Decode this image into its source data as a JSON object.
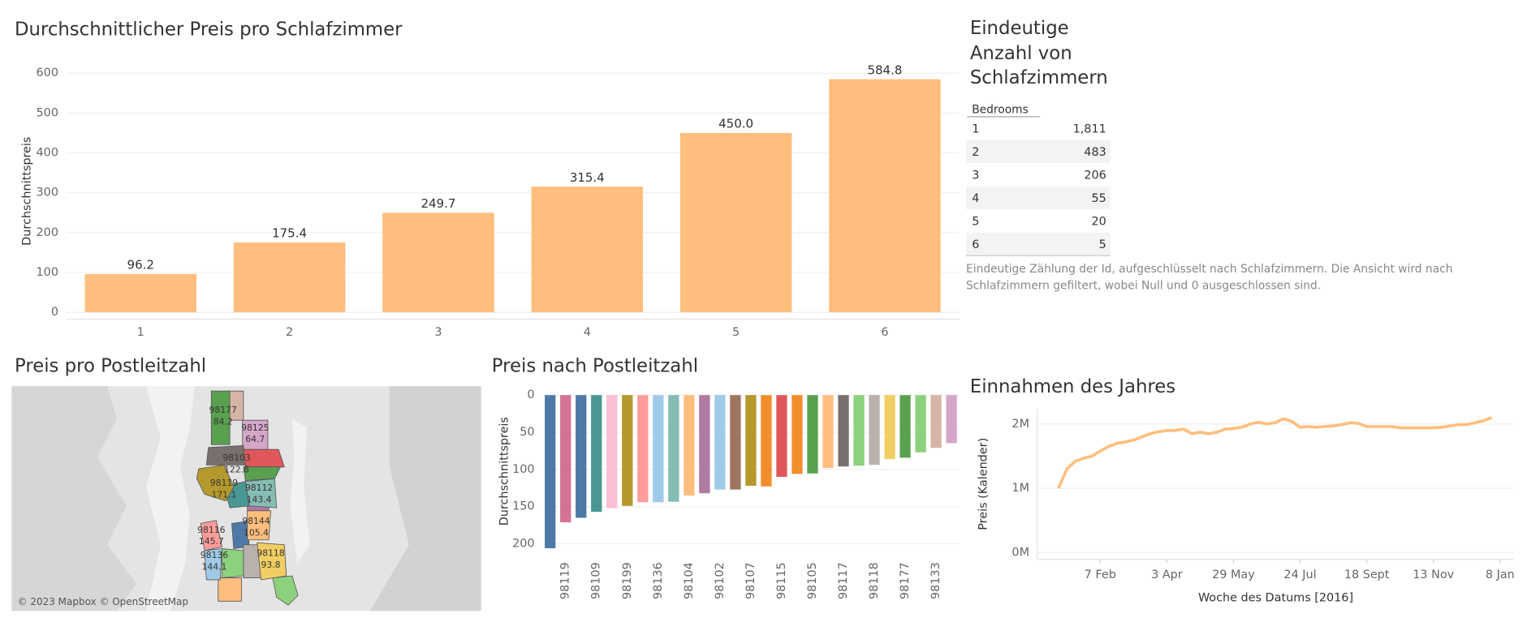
{
  "chart_data": [
    {
      "type": "bar",
      "title": "Durchschnittlicher Preis pro Schlafzimmer",
      "y_label": "Durchschnittspreis",
      "categories": [
        "1",
        "2",
        "3",
        "4",
        "5",
        "6"
      ],
      "values": [
        96.2,
        175.4,
        249.7,
        315.4,
        450.0,
        584.8
      ],
      "value_labels": [
        "96.2",
        "175.4",
        "249.7",
        "315.4",
        "450.0",
        "584.8"
      ],
      "color": "#ffbe7d",
      "ylim": [
        -17,
        625
      ],
      "yticks": [
        0,
        100,
        200,
        300,
        400,
        500,
        600
      ],
      "grid": true
    },
    {
      "type": "map",
      "title": "Preis pro Postleitzahl",
      "categories": [
        "98177",
        "98125",
        "98103",
        "98119",
        "98112",
        "98144",
        "98116",
        "98136",
        "98118"
      ],
      "values": [
        84.2,
        64.7,
        122.8,
        171.1,
        143.4,
        105.4,
        145.7,
        144.1,
        93.8
      ],
      "colors": [
        "#59a14f",
        "#d4a6c8",
        "#79706e",
        "#b6992d",
        "#86bcb6",
        "#ffbe7d",
        "#ff9d9a",
        "#a0cbe8",
        "#f1ce63"
      ],
      "attribution": "© 2023 Mapbox © OpenStreetMap"
    },
    {
      "type": "bar",
      "title": "Preis nach Postleitzahl",
      "y_label": "Durchschnittspreis",
      "categories": [
        null,
        "98119",
        null,
        "98109",
        null,
        "98199",
        null,
        "98136",
        null,
        "98104",
        null,
        "98102",
        null,
        "98107",
        null,
        "98115",
        null,
        "98105",
        null,
        "98117",
        null,
        "98118",
        null,
        "98177",
        null,
        "98133",
        null
      ],
      "values": [
        206,
        171.1,
        165,
        157,
        152,
        149,
        144,
        144.1,
        143.4,
        135,
        132,
        127,
        127,
        122,
        122.8,
        110,
        106,
        105.4,
        98,
        96,
        95,
        93.8,
        86,
        84.2,
        77,
        71,
        64.7
      ],
      "colors": [
        "#4e79a7",
        "#d37295",
        "#4e79a7",
        "#499894",
        "#fabfd2",
        "#b6992d",
        "#ff9d9a",
        "#a0cbe8",
        "#86bcb6",
        "#ffbe7d",
        "#b07aa1",
        "#a0cbe8",
        "#9d7660",
        "#b6992d",
        "#f28e2b",
        "#e15759",
        "#f28e2b",
        "#59a14f",
        "#ffbe7d",
        "#79706e",
        "#8cd17d",
        "#bab0ac",
        "#f1ce63",
        "#59a14f",
        "#8cd17d",
        "#d7b5a6",
        "#d4a6c8"
      ],
      "ylim": [
        -12,
        217
      ],
      "yticks": [
        0,
        50,
        100,
        150,
        200
      ],
      "reversed": true,
      "grid": true
    },
    {
      "type": "line",
      "title": "Einnahmen des Jahres",
      "y_label": "Preis (Kalender)",
      "x_label": "Woche des Datums [2016]",
      "x": [
        "2016-01-03",
        "2016-01-10",
        "2016-01-17",
        "2016-01-24",
        "2016-01-31",
        "2016-02-07",
        "2016-02-14",
        "2016-02-21",
        "2016-02-28",
        "2016-03-06",
        "2016-03-13",
        "2016-03-20",
        "2016-03-27",
        "2016-04-03",
        "2016-04-10",
        "2016-04-17",
        "2016-04-24",
        "2016-05-01",
        "2016-05-08",
        "2016-05-15",
        "2016-05-22",
        "2016-05-29",
        "2016-06-05",
        "2016-06-12",
        "2016-06-19",
        "2016-06-26",
        "2016-07-03",
        "2016-07-10",
        "2016-07-17",
        "2016-07-24",
        "2016-07-31",
        "2016-08-07",
        "2016-08-14",
        "2016-08-21",
        "2016-08-28",
        "2016-09-04",
        "2016-09-11",
        "2016-09-18",
        "2016-09-25",
        "2016-10-02",
        "2016-10-09",
        "2016-10-16",
        "2016-10-23",
        "2016-10-30",
        "2016-11-06",
        "2016-11-13",
        "2016-11-20",
        "2016-11-27",
        "2016-12-04",
        "2016-12-11",
        "2016-12-18",
        "2016-12-25",
        "2017-01-01"
      ],
      "values": [
        1000000,
        1300000,
        1420000,
        1470000,
        1500000,
        1580000,
        1650000,
        1700000,
        1720000,
        1750000,
        1800000,
        1850000,
        1880000,
        1900000,
        1900000,
        1920000,
        1850000,
        1870000,
        1850000,
        1870000,
        1920000,
        1930000,
        1950000,
        2000000,
        2030000,
        2000000,
        2020000,
        2080000,
        2040000,
        1950000,
        1960000,
        1950000,
        1960000,
        1970000,
        1990000,
        2020000,
        2010000,
        1960000,
        1960000,
        1960000,
        1960000,
        1940000,
        1940000,
        1940000,
        1940000,
        1940000,
        1950000,
        1970000,
        1990000,
        1990000,
        2020000,
        2050000,
        2100000
      ],
      "color": "#ffbe7d",
      "xlim": [
        "2015-12-16",
        "2017-01-20"
      ],
      "xticks": [
        {
          "value": "2016-02-07",
          "label": "7 Feb"
        },
        {
          "value": "2016-04-03",
          "label": "3 Apr"
        },
        {
          "value": "2016-05-29",
          "label": "29 May"
        },
        {
          "value": "2016-07-24",
          "label": "24 Jul"
        },
        {
          "value": "2016-09-18",
          "label": "18 Sept"
        },
        {
          "value": "2016-11-13",
          "label": "13 Nov"
        },
        {
          "value": "2017-01-08",
          "label": "8 Jan"
        }
      ],
      "ylim": [
        -106000,
        2240000
      ],
      "yticks": [
        {
          "value": 0,
          "label": "0M"
        },
        {
          "value": 1000000,
          "label": "1M"
        },
        {
          "value": 2000000,
          "label": "2M"
        }
      ],
      "grid": true
    }
  ],
  "table": {
    "title": "Eindeutige Anzahl von Schlafzimmern",
    "header": [
      "Bedrooms"
    ],
    "rows": [
      [
        "1",
        "1,811"
      ],
      [
        "2",
        "483"
      ],
      [
        "3",
        "206"
      ],
      [
        "4",
        "55"
      ],
      [
        "5",
        "20"
      ],
      [
        "6",
        "5"
      ]
    ]
  },
  "note": "Eindeutige Zählung der Id, aufgeschlüsselt nach Schlafzimmern. Die Ansicht wird nach Schlafzimmern gefiltert, wobei Null und 0 ausgeschlossen sind."
}
